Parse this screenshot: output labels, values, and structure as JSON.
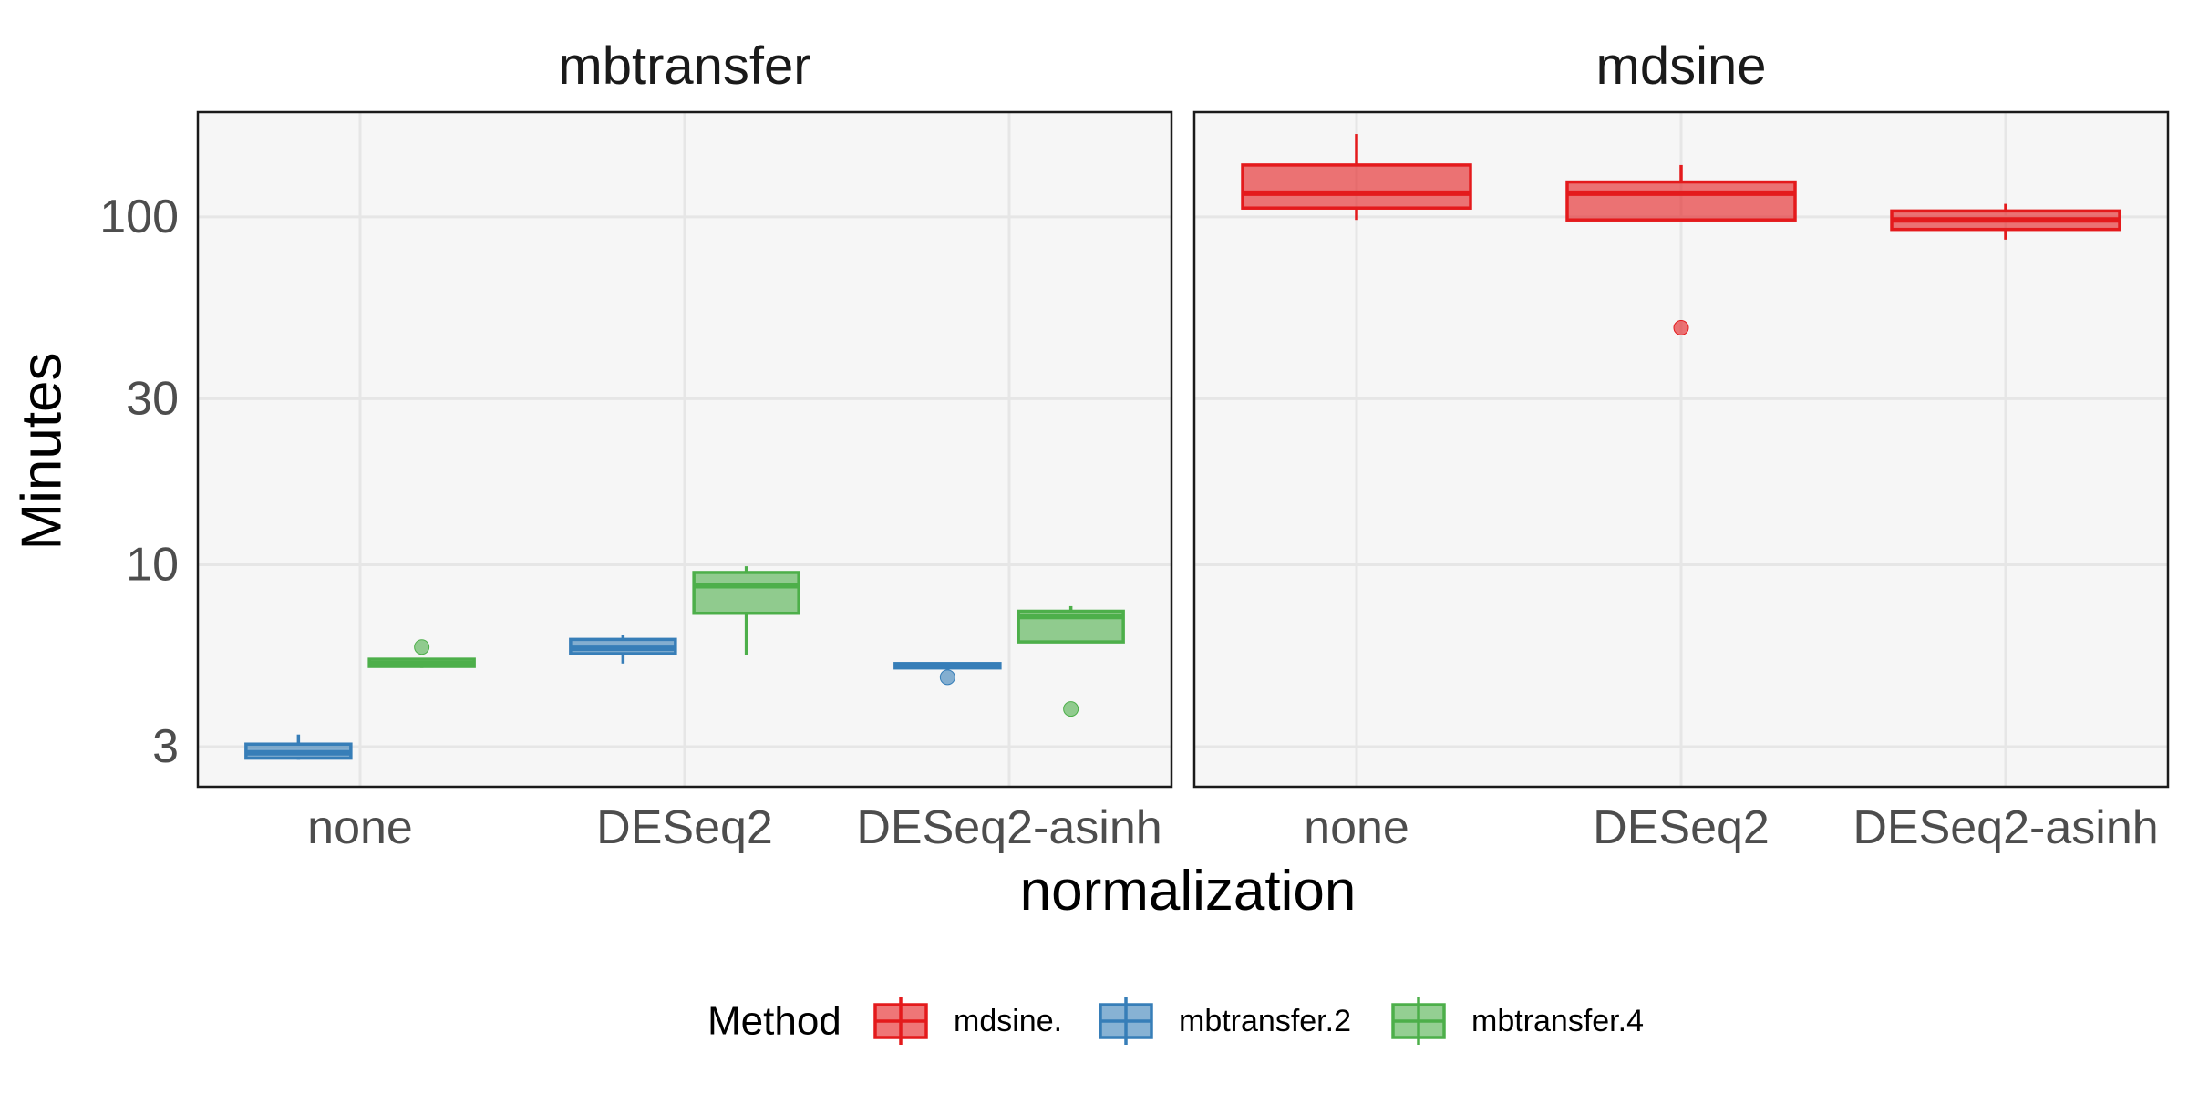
{
  "chart_data": {
    "type": "box",
    "ylabel": "Minutes",
    "xlabel": "normalization",
    "y_scale": "log10",
    "ylim": [
      2.3,
      200
    ],
    "y_ticks": [
      3,
      10,
      30,
      100
    ],
    "y_tick_labels": [
      "3",
      "10",
      "30",
      "100"
    ],
    "categories": [
      "none",
      "DESeq2",
      "DESeq2-asinh"
    ],
    "grid": true,
    "legend": {
      "title": "Method",
      "position": "bottom",
      "entries": [
        {
          "key": "mdsine",
          "label": "mdsine.",
          "color": "#e41a1c"
        },
        {
          "key": "mbtransfer2",
          "label": "mbtransfer.2",
          "color": "#377eb8"
        },
        {
          "key": "mbtransfer4",
          "label": "mbtransfer.4",
          "color": "#4daf4a"
        }
      ]
    },
    "facets": [
      {
        "title": "mbtransfer",
        "boxes": [
          {
            "category": "none",
            "method": "mbtransfer2",
            "offset": -0.19,
            "min": 2.75,
            "q1": 2.78,
            "median": 2.88,
            "q3": 3.05,
            "max": 3.25,
            "outliers": []
          },
          {
            "category": "none",
            "method": "mbtransfer4",
            "offset": 0.19,
            "min": 5.05,
            "q1": 5.1,
            "median": 5.2,
            "q3": 5.35,
            "max": 5.4,
            "outliers": [
              5.8
            ]
          },
          {
            "category": "DESeq2",
            "method": "mbtransfer2",
            "offset": -0.19,
            "min": 5.2,
            "q1": 5.55,
            "median": 5.75,
            "q3": 6.1,
            "max": 6.3,
            "outliers": []
          },
          {
            "category": "DESeq2",
            "method": "mbtransfer4",
            "offset": 0.19,
            "min": 5.5,
            "q1": 7.25,
            "median": 8.7,
            "q3": 9.5,
            "max": 9.9,
            "outliers": []
          },
          {
            "category": "DESeq2-asinh",
            "method": "mbtransfer2",
            "offset": -0.19,
            "min": 5.0,
            "q1": 5.05,
            "median": 5.12,
            "q3": 5.2,
            "max": 5.2,
            "outliers": [
              4.75
            ]
          },
          {
            "category": "DESeq2-asinh",
            "method": "mbtransfer4",
            "offset": 0.19,
            "min": 6.0,
            "q1": 6.0,
            "median": 7.1,
            "q3": 7.35,
            "max": 7.6,
            "outliers": [
              3.85
            ]
          }
        ]
      },
      {
        "title": "mdsine",
        "boxes": [
          {
            "category": "none",
            "method": "mdsine",
            "offset": 0,
            "min": 98,
            "q1": 106,
            "median": 117,
            "q3": 141,
            "max": 173,
            "outliers": []
          },
          {
            "category": "DESeq2",
            "method": "mdsine",
            "offset": 0,
            "min": 98,
            "q1": 98,
            "median": 117,
            "q3": 126,
            "max": 141,
            "outliers": [
              48
            ]
          },
          {
            "category": "DESeq2-asinh",
            "method": "mdsine",
            "offset": 0,
            "min": 86,
            "q1": 92,
            "median": 98,
            "q3": 104,
            "max": 109,
            "outliers": []
          }
        ]
      }
    ]
  }
}
